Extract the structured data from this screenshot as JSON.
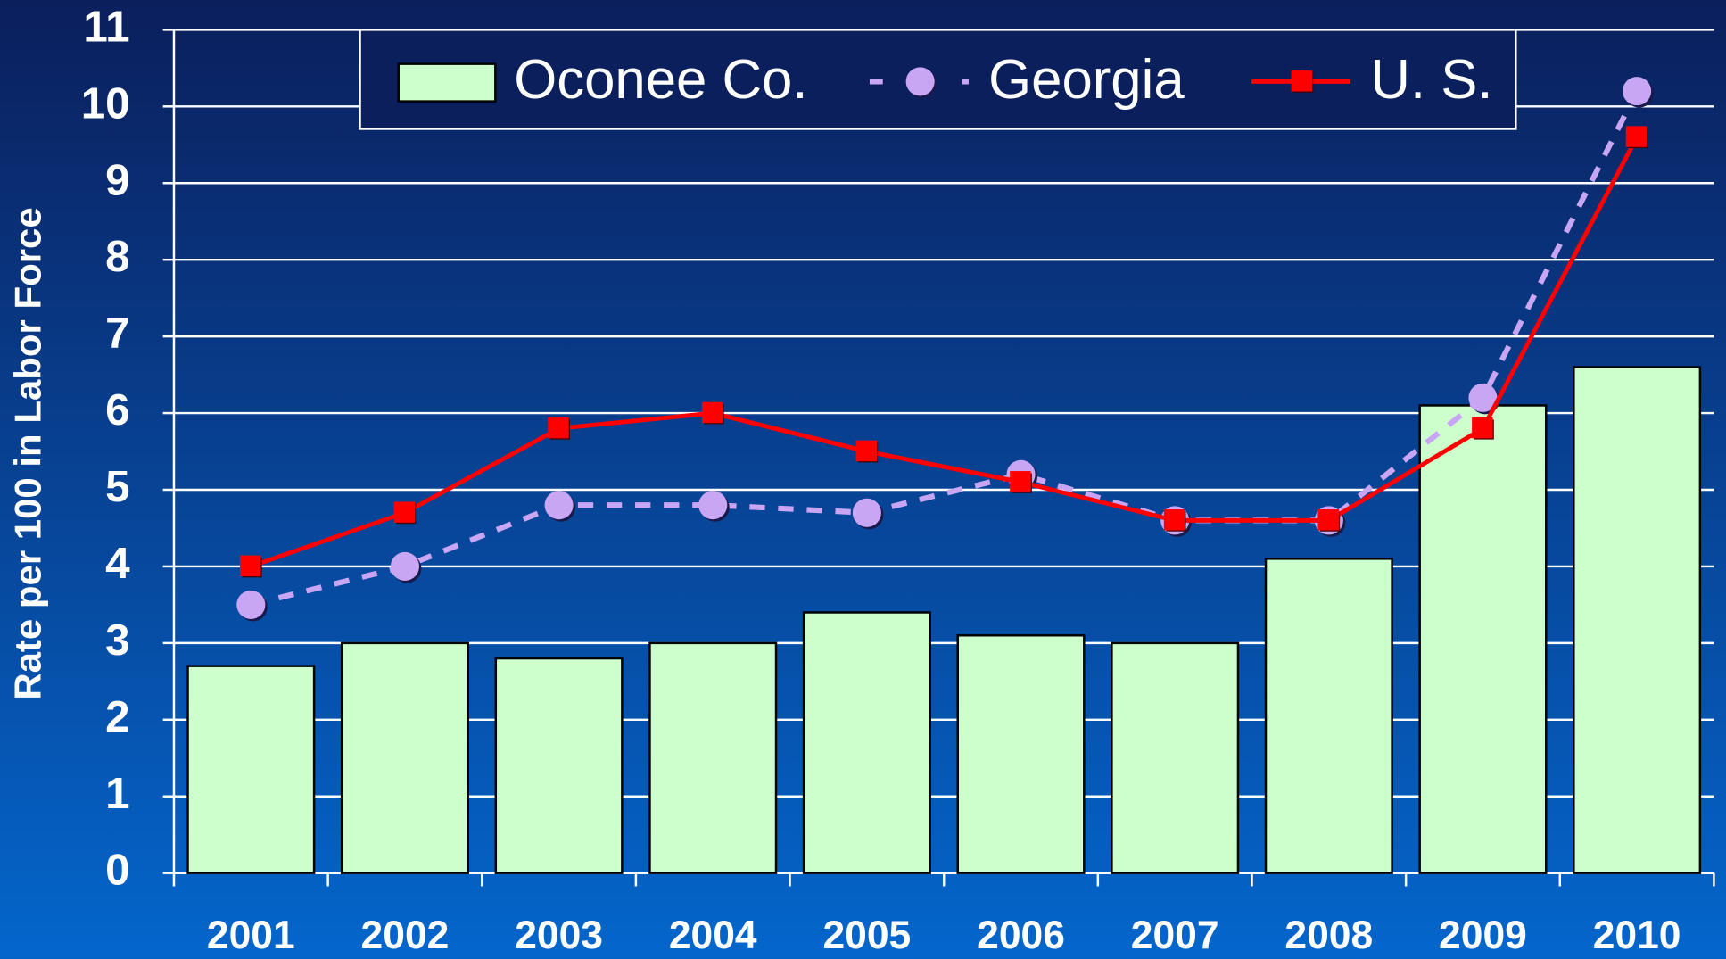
{
  "chart_data": {
    "type": "bar",
    "y_label": "Rate per 100 in Labor Force",
    "categories": [
      "2001",
      "2002",
      "2003",
      "2004",
      "2005",
      "2006",
      "2007",
      "2008",
      "2009",
      "2010"
    ],
    "series": [
      {
        "name": "Oconee Co.",
        "type": "bar",
        "color": "#ccffcc",
        "values": [
          2.7,
          3.0,
          2.8,
          3.0,
          3.4,
          3.1,
          3.0,
          4.1,
          6.1,
          6.6
        ]
      },
      {
        "name": "Georgia",
        "type": "line",
        "color": "#c8a6f4",
        "line_style": "dashed",
        "marker": "circle",
        "values": [
          3.5,
          4.0,
          4.8,
          4.8,
          4.7,
          5.2,
          4.6,
          4.6,
          6.2,
          10.2
        ]
      },
      {
        "name": "U. S.",
        "type": "line",
        "color": "#ff0000",
        "line_style": "solid",
        "marker": "square",
        "values": [
          4.0,
          4.7,
          5.8,
          6.0,
          5.5,
          5.1,
          4.6,
          4.6,
          5.8,
          9.6
        ]
      }
    ],
    "ylim": [
      0,
      11
    ],
    "yticks": [
      0,
      1,
      2,
      3,
      4,
      5,
      6,
      7,
      8,
      9,
      10,
      11
    ],
    "grid": true,
    "legend": "top"
  }
}
